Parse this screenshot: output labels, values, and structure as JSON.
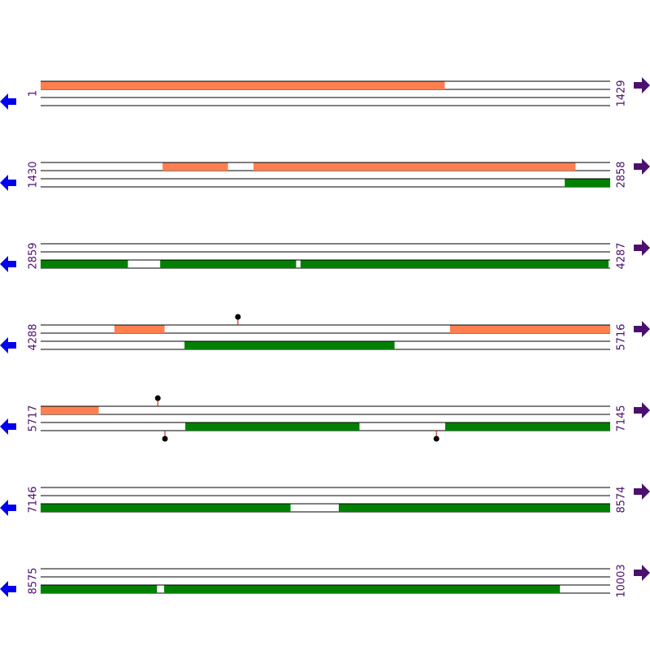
{
  "rows": [
    {
      "start": 1,
      "end": 1429,
      "features": [
        {
          "strand": "+",
          "start": 1,
          "end": 1014
        }
      ],
      "sites": []
    },
    {
      "start": 1430,
      "end": 2858,
      "features": [
        {
          "strand": "+",
          "start": 1736,
          "end": 1899
        },
        {
          "strand": "+",
          "start": 1964,
          "end": 2771
        },
        {
          "strand": "-",
          "start": 2745,
          "end": 2858
        }
      ],
      "sites": []
    },
    {
      "start": 2859,
      "end": 4287,
      "features": [
        {
          "strand": "-",
          "start": 2859,
          "end": 3077
        },
        {
          "strand": "-",
          "start": 3159,
          "end": 3499
        },
        {
          "strand": "-",
          "start": 3511,
          "end": 4283
        }
      ],
      "sites": []
    },
    {
      "start": 4288,
      "end": 5716,
      "features": [
        {
          "strand": "+",
          "start": 4473,
          "end": 4598
        },
        {
          "strand": "+",
          "start": 5315,
          "end": 5716
        },
        {
          "strand": "-",
          "start": 4649,
          "end": 5175
        }
      ],
      "sites": [
        {
          "strand": "+",
          "position": 4783
        }
      ]
    },
    {
      "start": 5717,
      "end": 7145,
      "features": [
        {
          "strand": "+",
          "start": 5717,
          "end": 5862
        },
        {
          "strand": "-",
          "start": 6080,
          "end": 6516
        },
        {
          "strand": "-",
          "start": 6732,
          "end": 7145
        }
      ],
      "sites": [
        {
          "strand": "+",
          "position": 6011
        },
        {
          "strand": "-",
          "position": 6029
        },
        {
          "strand": "-",
          "position": 6710
        }
      ]
    },
    {
      "start": 7146,
      "end": 8574,
      "features": [
        {
          "strand": "-",
          "start": 7146,
          "end": 7772
        },
        {
          "strand": "-",
          "start": 7894,
          "end": 8574
        }
      ],
      "sites": []
    },
    {
      "start": 8575,
      "end": 10003,
      "features": [
        {
          "strand": "-",
          "start": 8575,
          "end": 8866
        },
        {
          "strand": "-",
          "start": 8885,
          "end": 9877
        }
      ],
      "sites": []
    }
  ],
  "colors": {
    "+": "#ff7f50",
    "-": "#008000"
  }
}
